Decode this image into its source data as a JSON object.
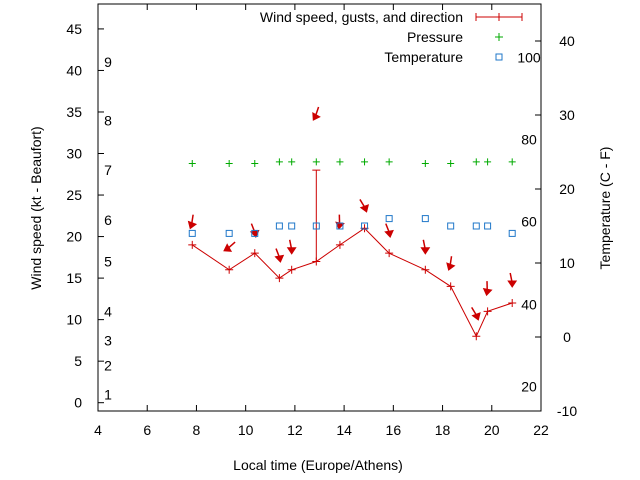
{
  "chart_data": {
    "type": "line",
    "xlabel": "Local time (Europe/Athens)",
    "ylabel_left": "Wind speed (kt - Beaufort)",
    "ylabel_right": "Temperature (C - F)",
    "xlim": [
      4,
      22
    ],
    "ylim": [
      -1,
      48
    ],
    "ylim_right": [
      -10,
      45
    ],
    "x_ticks": [
      "4",
      "6",
      "8",
      "10",
      "12",
      "14",
      "16",
      "18",
      "20",
      "22"
    ],
    "y_ticks_left": [
      "0",
      "5",
      "10",
      "15",
      "20",
      "25",
      "30",
      "35",
      "40",
      "45"
    ],
    "y_ticks_right_c": [
      "-10",
      "0",
      "10",
      "20",
      "30",
      "40"
    ],
    "fahrenheit_labels": [
      {
        "label": "20",
        "celsius": -6.7
      },
      {
        "label": "40",
        "celsius": 4.4
      },
      {
        "label": "60",
        "celsius": 15.6
      },
      {
        "label": "80",
        "celsius": 26.7
      },
      {
        "label": "100",
        "celsius": 37.8
      }
    ],
    "beaufort_labels": [
      {
        "label": "1",
        "kt": 1
      },
      {
        "label": "2",
        "kt": 4.5
      },
      {
        "label": "3",
        "kt": 7.5
      },
      {
        "label": "4",
        "kt": 11
      },
      {
        "label": "5",
        "kt": 17
      },
      {
        "label": "6",
        "kt": 22
      },
      {
        "label": "7",
        "kt": 28
      },
      {
        "label": "8",
        "kt": 34
      },
      {
        "label": "9",
        "kt": 41
      }
    ],
    "legend": {
      "placement": "top-right",
      "entries": [
        "Wind speed, gusts, and direction",
        "Pressure",
        "Temperature"
      ]
    },
    "colors": {
      "wind": "#cc0000",
      "pressure": "#00aa00",
      "temperature": "#1f77c9"
    },
    "series": [
      {
        "name": "Wind speed, gusts, and direction",
        "x": [
          7.83,
          9.33,
          10.37,
          11.37,
          11.87,
          12.87,
          13.83,
          14.83,
          15.83,
          17.3,
          18.33,
          19.37,
          19.83,
          20.83
        ],
        "values": [
          19,
          16,
          18,
          15,
          16,
          17,
          19,
          21,
          18,
          16,
          14,
          8,
          11,
          12
        ],
        "gust_high": [
          null,
          null,
          null,
          null,
          null,
          28,
          null,
          null,
          null,
          null,
          null,
          null,
          null,
          null
        ],
        "direction_deg": [
          20,
          60,
          350,
          350,
          0,
          30,
          10,
          340,
          350,
          0,
          20,
          340,
          10,
          0
        ]
      },
      {
        "name": "Pressure",
        "x": [
          7.83,
          9.33,
          10.37,
          11.37,
          11.87,
          12.87,
          13.83,
          14.83,
          15.83,
          17.3,
          18.33,
          19.37,
          19.83,
          20.83
        ],
        "values": [
          28.8,
          28.8,
          28.8,
          29,
          29,
          29,
          29,
          29,
          29,
          28.8,
          28.8,
          29,
          29,
          29
        ]
      },
      {
        "name": "Temperature",
        "x": [
          7.83,
          9.33,
          10.37,
          11.37,
          11.87,
          12.87,
          13.83,
          14.83,
          15.83,
          17.3,
          18.33,
          19.37,
          19.83,
          20.83
        ],
        "values": [
          14,
          14,
          14,
          15,
          15,
          15,
          15,
          15,
          16,
          16,
          15,
          15,
          15,
          14
        ]
      }
    ]
  }
}
